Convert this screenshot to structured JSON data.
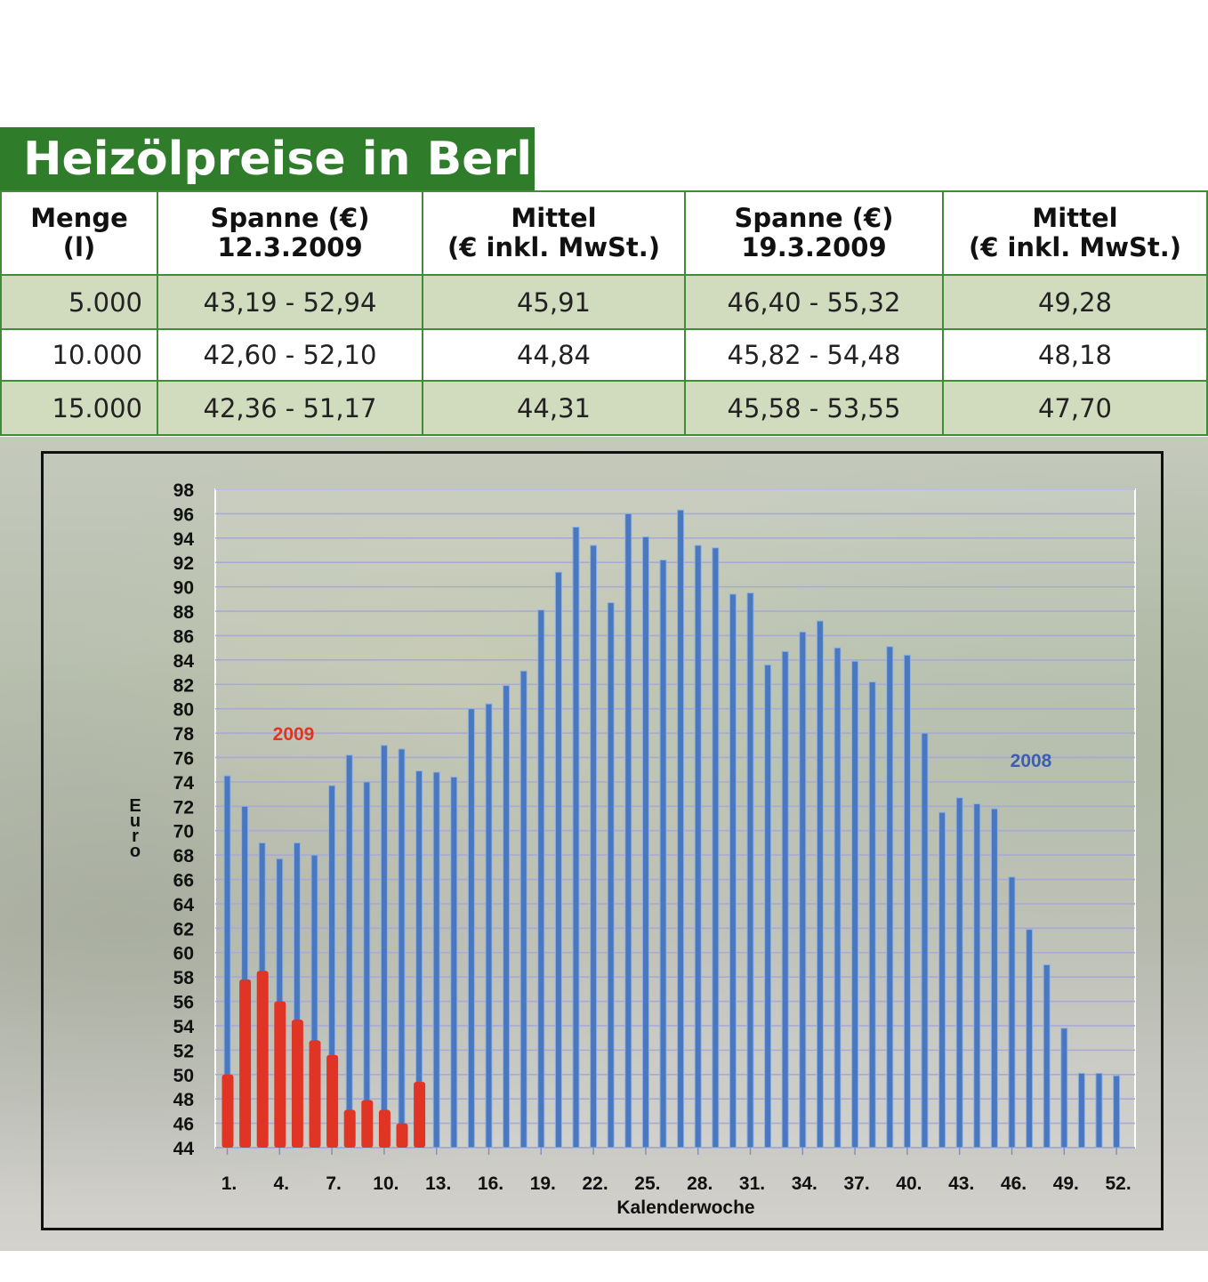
{
  "title": "Heizölpreise in Berlin",
  "table": {
    "headers": [
      [
        "Menge",
        "(l)"
      ],
      [
        "Spanne (€)",
        "12.3.2009"
      ],
      [
        "Mittel",
        "(€ inkl. MwSt.)"
      ],
      [
        "Spanne (€)",
        "19.3.2009"
      ],
      [
        "Mittel",
        "(€ inkl. MwSt.)"
      ]
    ],
    "rows": [
      [
        "5.000",
        "43,19 - 52,94",
        "45,91",
        "46,40 - 55,32",
        "49,28"
      ],
      [
        "10.000",
        "42,60 - 52,10",
        "44,84",
        "45,82 - 54,48",
        "48,18"
      ],
      [
        "15.000",
        "42,36 - 51,17",
        "44,31",
        "45,58 - 53,55",
        "47,70"
      ]
    ]
  },
  "chart_data": {
    "type": "bar",
    "xlabel": "Kalenderwoche",
    "ylabel": "Euro",
    "ylim": [
      44,
      98
    ],
    "yticks": [
      98,
      96,
      94,
      92,
      90,
      88,
      86,
      84,
      82,
      80,
      78,
      76,
      74,
      72,
      70,
      68,
      66,
      64,
      62,
      60,
      58,
      56,
      54,
      52,
      50,
      48,
      46,
      44
    ],
    "xtick_labels": [
      "1.",
      "4.",
      "7.",
      "10.",
      "13.",
      "16.",
      "19.",
      "22.",
      "25.",
      "28.",
      "31.",
      "34.",
      "37.",
      "40.",
      "43.",
      "46.",
      "49.",
      "52."
    ],
    "xtick_weeks": [
      1,
      4,
      7,
      10,
      13,
      16,
      19,
      22,
      25,
      28,
      31,
      34,
      37,
      40,
      43,
      46,
      49,
      52
    ],
    "grid": true,
    "series": [
      {
        "name": "2008",
        "color": "#4a78c0",
        "values": [
          74.5,
          72,
          69,
          67.7,
          69,
          68,
          73.7,
          76.2,
          74,
          77,
          76.7,
          74.9,
          74.8,
          74.4,
          80,
          80.4,
          81.9,
          83.1,
          88.1,
          91.2,
          94.9,
          93.4,
          88.7,
          96,
          94.1,
          92.2,
          96.3,
          93.4,
          93.2,
          89.4,
          89.5,
          83.6,
          84.7,
          86.3,
          87.2,
          85,
          83.9,
          82.2,
          85.1,
          84.4,
          78,
          71.5,
          72.7,
          72.2,
          71.8,
          66.2,
          61.9,
          59,
          53.8,
          50.1,
          50.1,
          49.9
        ]
      },
      {
        "name": "2009",
        "color": "#e03525",
        "values": [
          50,
          57.8,
          58.5,
          56,
          54.5,
          52.8,
          51.6,
          47.1,
          47.9,
          47.1,
          46,
          49.4
        ]
      }
    ]
  }
}
